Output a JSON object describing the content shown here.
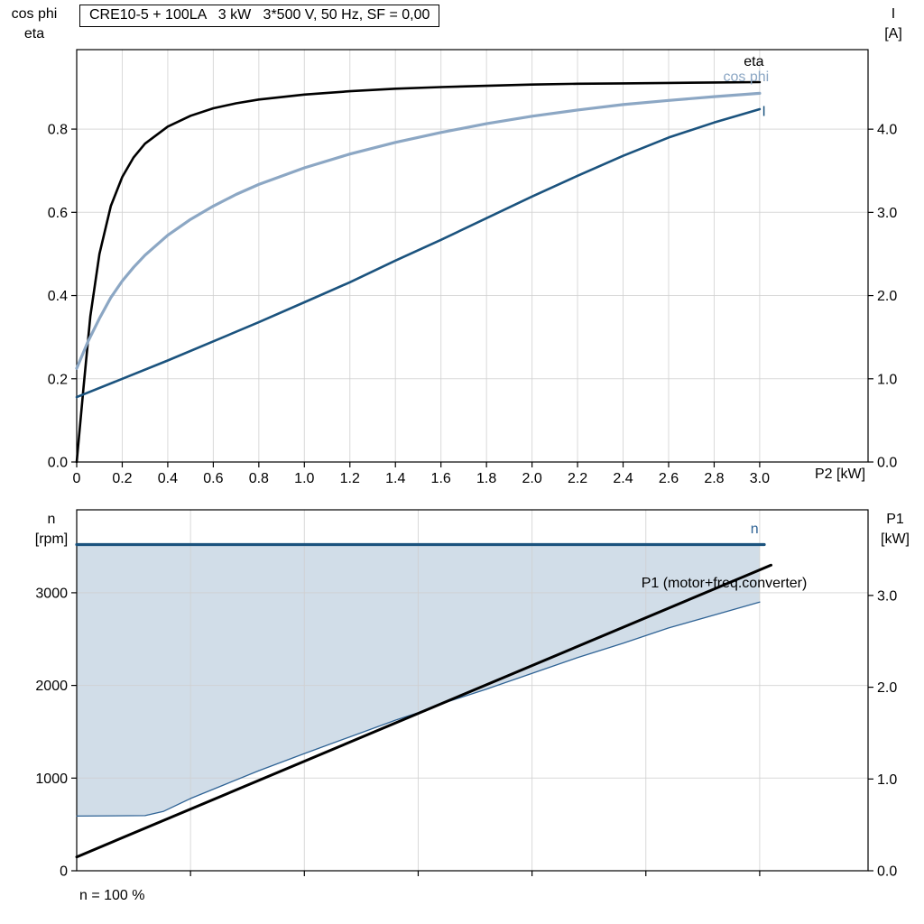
{
  "chart_data": [
    {
      "type": "line",
      "title": "CRE10-5 + 100LA   3 kW   3*500 V, 50 Hz, SF = 0,00",
      "xlabel": "P2 [kW]",
      "ylabel_left": "cos phi\neta",
      "ylabel_right": "I\n[A]",
      "xlim": [
        0,
        3.476
      ],
      "ylim_left": [
        0,
        0.991
      ],
      "ylim_right": [
        0,
        4.956
      ],
      "grid": true,
      "x_ticks": [
        {
          "v": 0,
          "t": "0"
        },
        {
          "v": 0.2,
          "t": "0.2"
        },
        {
          "v": 0.4,
          "t": "0.4"
        },
        {
          "v": 0.6,
          "t": "0.6"
        },
        {
          "v": 0.8,
          "t": "0.8"
        },
        {
          "v": 1.0,
          "t": "1.0"
        },
        {
          "v": 1.2,
          "t": "1.2"
        },
        {
          "v": 1.4,
          "t": "1.4"
        },
        {
          "v": 1.6,
          "t": "1.6"
        },
        {
          "v": 1.8,
          "t": "1.8"
        },
        {
          "v": 2.0,
          "t": "2.0"
        },
        {
          "v": 2.2,
          "t": "2.2"
        },
        {
          "v": 2.4,
          "t": "2.4"
        },
        {
          "v": 2.6,
          "t": "2.6"
        },
        {
          "v": 2.8,
          "t": "2.8"
        },
        {
          "v": 3.0,
          "t": "3.0"
        }
      ],
      "y_ticks_left": [
        {
          "v": 0,
          "t": "0.0"
        },
        {
          "v": 0.2,
          "t": "0.2"
        },
        {
          "v": 0.4,
          "t": "0.4"
        },
        {
          "v": 0.6,
          "t": "0.6"
        },
        {
          "v": 0.8,
          "t": "0.8"
        }
      ],
      "y_ticks_right": [
        {
          "v": 0,
          "t": "0.0"
        },
        {
          "v": 1,
          "t": "1.0"
        },
        {
          "v": 2,
          "t": "2.0"
        },
        {
          "v": 3,
          "t": "3.0"
        },
        {
          "v": 4,
          "t": "4.0"
        }
      ],
      "grid_x": [
        0.2,
        0.4,
        0.6,
        0.8,
        1.0,
        1.2,
        1.4,
        1.6,
        1.8,
        2.0,
        2.2,
        2.4,
        2.6,
        2.8,
        3.0
      ],
      "grid_y_left": [
        0.2,
        0.4,
        0.6,
        0.8
      ],
      "series": [
        {
          "name": "eta",
          "axis": "left",
          "color": "#000000",
          "width": 2.6,
          "points": [
            [
              0,
              0
            ],
            [
              0.03,
              0.18
            ],
            [
              0.06,
              0.35
            ],
            [
              0.1,
              0.5
            ],
            [
              0.15,
              0.615
            ],
            [
              0.2,
              0.685
            ],
            [
              0.25,
              0.732
            ],
            [
              0.3,
              0.765
            ],
            [
              0.4,
              0.806
            ],
            [
              0.5,
              0.832
            ],
            [
              0.6,
              0.85
            ],
            [
              0.7,
              0.862
            ],
            [
              0.8,
              0.871
            ],
            [
              1.0,
              0.883
            ],
            [
              1.2,
              0.891
            ],
            [
              1.4,
              0.897
            ],
            [
              1.6,
              0.901
            ],
            [
              1.8,
              0.904
            ],
            [
              2.0,
              0.907
            ],
            [
              2.2,
              0.909
            ],
            [
              2.4,
              0.91
            ],
            [
              2.6,
              0.911
            ],
            [
              2.8,
              0.912
            ],
            [
              3.0,
              0.913
            ]
          ]
        },
        {
          "name": "cos phi",
          "axis": "left",
          "color": "#8CA7C4",
          "width": 3.2,
          "points": [
            [
              0,
              0.225
            ],
            [
              0.05,
              0.29
            ],
            [
              0.1,
              0.345
            ],
            [
              0.15,
              0.395
            ],
            [
              0.2,
              0.435
            ],
            [
              0.25,
              0.468
            ],
            [
              0.3,
              0.497
            ],
            [
              0.4,
              0.545
            ],
            [
              0.5,
              0.583
            ],
            [
              0.6,
              0.615
            ],
            [
              0.7,
              0.643
            ],
            [
              0.8,
              0.667
            ],
            [
              1.0,
              0.707
            ],
            [
              1.2,
              0.74
            ],
            [
              1.4,
              0.768
            ],
            [
              1.6,
              0.792
            ],
            [
              1.8,
              0.813
            ],
            [
              2.0,
              0.831
            ],
            [
              2.2,
              0.846
            ],
            [
              2.4,
              0.859
            ],
            [
              2.6,
              0.869
            ],
            [
              2.8,
              0.878
            ],
            [
              3.0,
              0.886
            ]
          ]
        },
        {
          "name": "I",
          "axis": "right",
          "color": "#1B537E",
          "width": 2.6,
          "points": [
            [
              0,
              0.78
            ],
            [
              0.2,
              1.0
            ],
            [
              0.4,
              1.22
            ],
            [
              0.6,
              1.45
            ],
            [
              0.8,
              1.68
            ],
            [
              1.0,
              1.92
            ],
            [
              1.2,
              2.16
            ],
            [
              1.4,
              2.42
            ],
            [
              1.6,
              2.67
            ],
            [
              1.8,
              2.93
            ],
            [
              2.0,
              3.19
            ],
            [
              2.2,
              3.44
            ],
            [
              2.4,
              3.68
            ],
            [
              2.6,
              3.9
            ],
            [
              2.8,
              4.08
            ],
            [
              3.0,
              4.24
            ]
          ]
        }
      ],
      "annotations": [
        {
          "text": "eta",
          "x": 2.93,
          "y": 0.952,
          "axis": "left",
          "color": "#000000",
          "anchor": "start"
        },
        {
          "text": "cos phi",
          "x": 2.84,
          "y": 0.915,
          "axis": "left",
          "color": "#8CA7C4",
          "anchor": "start"
        },
        {
          "text": "I",
          "x": 3.01,
          "y": 4.16,
          "axis": "right",
          "color": "#1B537E",
          "anchor": "start"
        }
      ]
    },
    {
      "type": "line+area",
      "title": "",
      "xlabel": "",
      "ylabel_left": "n\n[rpm]",
      "ylabel_right": "P1\n[kW]",
      "footnote": "n = 100 %",
      "xlim": [
        0,
        3.476
      ],
      "ylim_left": [
        0,
        3895
      ],
      "ylim_right": [
        0,
        3.933
      ],
      "grid": true,
      "x_ticks": [
        {
          "v": 0.5,
          "t": ""
        },
        {
          "v": 1.0,
          "t": ""
        },
        {
          "v": 1.5,
          "t": ""
        },
        {
          "v": 2.0,
          "t": ""
        },
        {
          "v": 2.5,
          "t": ""
        },
        {
          "v": 3.0,
          "t": ""
        }
      ],
      "y_ticks_left": [
        {
          "v": 0,
          "t": "0"
        },
        {
          "v": 1000,
          "t": "1000"
        },
        {
          "v": 2000,
          "t": "2000"
        },
        {
          "v": 3000,
          "t": "3000"
        }
      ],
      "y_ticks_right": [
        {
          "v": 0,
          "t": "0.0"
        },
        {
          "v": 1,
          "t": "1.0"
        },
        {
          "v": 2,
          "t": "2.0"
        },
        {
          "v": 3,
          "t": "3.0"
        }
      ],
      "grid_x": [
        0.5,
        1.0,
        1.5,
        2.0,
        2.5,
        3.0
      ],
      "grid_y_left": [
        1000,
        2000,
        3000
      ],
      "area": {
        "axis": "left",
        "fill": "#CCD9E6",
        "opacity": 0.9,
        "points": [
          [
            0,
            590
          ],
          [
            0.3,
            595
          ],
          [
            0.38,
            640
          ],
          [
            0.5,
            780
          ],
          [
            0.65,
            930
          ],
          [
            0.8,
            1080
          ],
          [
            1.0,
            1265
          ],
          [
            1.2,
            1445
          ],
          [
            1.4,
            1625
          ],
          [
            1.5,
            1705
          ],
          [
            1.6,
            1800
          ],
          [
            1.8,
            1960
          ],
          [
            2.0,
            2130
          ],
          [
            2.2,
            2300
          ],
          [
            2.4,
            2455
          ],
          [
            2.6,
            2620
          ],
          [
            2.8,
            2760
          ],
          [
            3.0,
            2900
          ],
          [
            3.0,
            3520
          ],
          [
            0,
            3520
          ]
        ]
      },
      "series": [
        {
          "name": "operating-range-lower",
          "axis": "left",
          "color": "#2F6395",
          "width": 1.3,
          "points": [
            [
              0,
              590
            ],
            [
              0.3,
              595
            ],
            [
              0.38,
              640
            ],
            [
              0.5,
              780
            ],
            [
              0.65,
              930
            ],
            [
              0.8,
              1080
            ],
            [
              1.0,
              1265
            ],
            [
              1.2,
              1445
            ],
            [
              1.4,
              1625
            ],
            [
              1.5,
              1705
            ],
            [
              1.6,
              1800
            ],
            [
              1.8,
              1960
            ],
            [
              2.0,
              2130
            ],
            [
              2.2,
              2300
            ],
            [
              2.4,
              2455
            ],
            [
              2.6,
              2620
            ],
            [
              2.8,
              2760
            ],
            [
              3.0,
              2900
            ]
          ]
        },
        {
          "name": "n",
          "axis": "left",
          "color": "#1B537E",
          "width": 3.2,
          "points": [
            [
              0,
              3520
            ],
            [
              3.02,
              3520
            ]
          ]
        },
        {
          "name": "P1 (motor+freq.converter)",
          "axis": "right",
          "color": "#000000",
          "width": 3.0,
          "points": [
            [
              0,
              0.15
            ],
            [
              3.05,
              3.33
            ]
          ]
        }
      ],
      "annotations": [
        {
          "text": "n",
          "x": 2.96,
          "y": 3640,
          "axis": "left",
          "color": "#2F6395",
          "anchor": "start"
        },
        {
          "text": "P1 (motor+freq.converter)",
          "x": 2.48,
          "y": 3060,
          "axis": "left",
          "color": "#000000",
          "anchor": "start"
        }
      ]
    }
  ],
  "style": {
    "grid_color": "#CFCFCF",
    "frame_color": "#000000",
    "tick_color": "#000000",
    "background": "#FFFFFF"
  }
}
